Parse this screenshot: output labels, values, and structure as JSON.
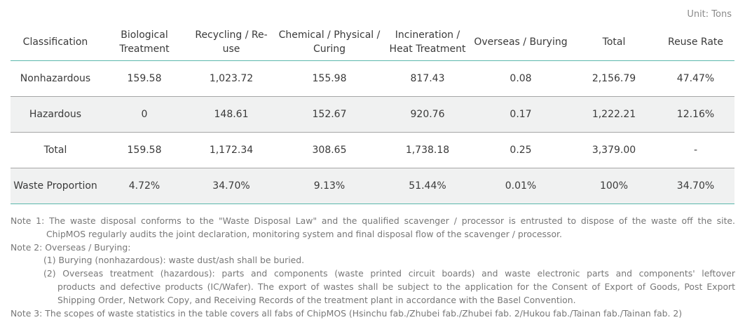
{
  "unit_label": "Unit: Tons",
  "table": {
    "headers": [
      "Classification",
      "Biological Treatment",
      "Recycling / Re-use",
      "Chemical / Physical / Curing",
      "Incineration / Heat Treatment",
      "Overseas / Burying",
      "Total",
      "Reuse Rate"
    ],
    "rows": [
      [
        "Nonhazardous",
        "159.58",
        "1,023.72",
        "155.98",
        "817.43",
        "0.08",
        "2,156.79",
        "47.47%"
      ],
      [
        "Hazardous",
        "0",
        "148.61",
        "152.67",
        "920.76",
        "0.17",
        "1,222.21",
        "12.16%"
      ],
      [
        "Total",
        "159.58",
        "1,172.34",
        "308.65",
        "1,738.18",
        "0.25",
        "3,379.00",
        "-"
      ],
      [
        "Waste Proportion",
        "4.72%",
        "34.70%",
        "9.13%",
        "51.44%",
        "0.01%",
        "100%",
        "34.70%"
      ]
    ],
    "accent_color": "#5bb8ad",
    "shaded_row_color": "#f0f1f1"
  },
  "notes": {
    "note1_line1": "Note 1: The waste disposal conforms to the \"Waste Disposal Law\" and the qualified scavenger / processor is entrusted to dispose of the waste off the site.",
    "note1_line2": "ChipMOS regularly audits the joint declaration, monitoring system and final disposal flow of the scavenger / processor.",
    "note2_title": "Note 2: Overseas / Burying:",
    "note2_item1": "(1) Burying (nonhazardous): waste dust/ash shall be buried.",
    "note2_item2_line1": "(2) Overseas treatment (hazardous): parts and components (waste printed circuit boards) and waste electronic parts and components' leftover",
    "note2_item2_line2": "products and defective products (IC/Wafer). The export of wastes shall be subject to the application for the Consent of Export of Goods, Post Export",
    "note2_item2_line3": "Shipping Order, Network Copy, and Receiving Records of the treatment plant in accordance with the Basel Convention.",
    "note3": "Note 3: The scopes of waste statistics in the table covers all fabs of ChipMOS (Hsinchu fab./Zhubei fab./Zhubei fab. 2/Hukou fab./Tainan fab./Tainan fab. 2)"
  }
}
